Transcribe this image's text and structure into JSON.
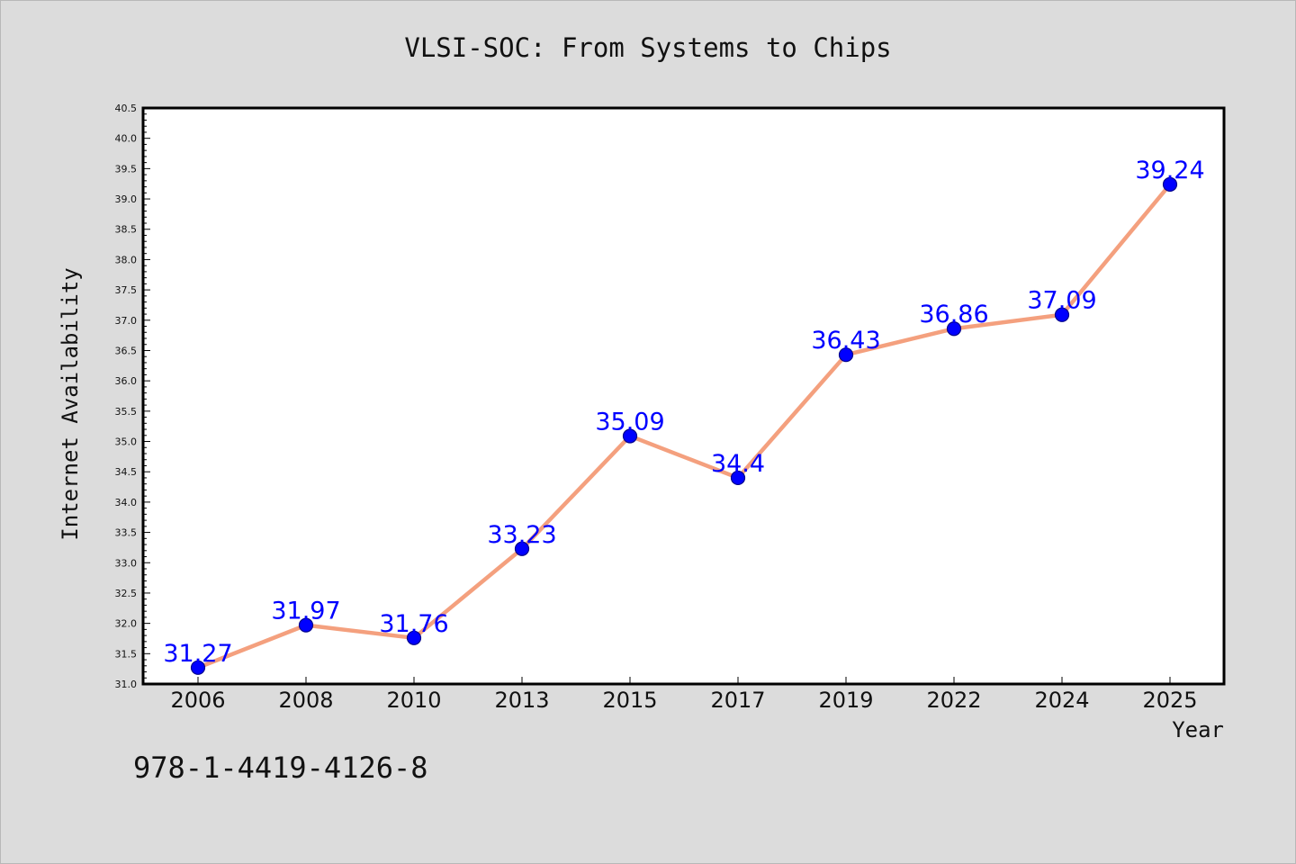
{
  "colors": {
    "background": "#dcdcdc",
    "plot_background": "#ffffff",
    "line": "#f4a07e",
    "marker": "#0000ff",
    "marker_edge": "#00008b",
    "data_label": "#0000ff",
    "text": "#111111"
  },
  "footnote": "978-1-4419-4126-8",
  "chart_data": {
    "type": "line",
    "title": "VLSI-SOC: From Systems to Chips",
    "xlabel": "Year",
    "ylabel": "Internet Availability",
    "categories": [
      "2006",
      "2008",
      "2010",
      "2013",
      "2015",
      "2017",
      "2019",
      "2022",
      "2024",
      "2025"
    ],
    "series": [
      {
        "values": [
          31.27,
          31.97,
          31.76,
          33.23,
          35.09,
          34.4,
          36.43,
          36.86,
          37.09,
          39.24
        ],
        "labels": [
          "31.27",
          "31.97",
          "31.76",
          "33.23",
          "35.09",
          "34.4",
          "36.43",
          "36.86",
          "37.09",
          "39.24"
        ]
      }
    ],
    "ylim": [
      31.0,
      40.5
    ],
    "yticks": [
      "31.0",
      "31.5",
      "32.0",
      "32.5",
      "33.0",
      "33.5",
      "34.0",
      "34.5",
      "35.0",
      "35.5",
      "36.0",
      "36.5",
      "37.0",
      "37.5",
      "38.0",
      "38.5",
      "39.0",
      "39.5",
      "40.0",
      "40.5"
    ],
    "grid": false,
    "legend": "none",
    "data_labels": true
  }
}
